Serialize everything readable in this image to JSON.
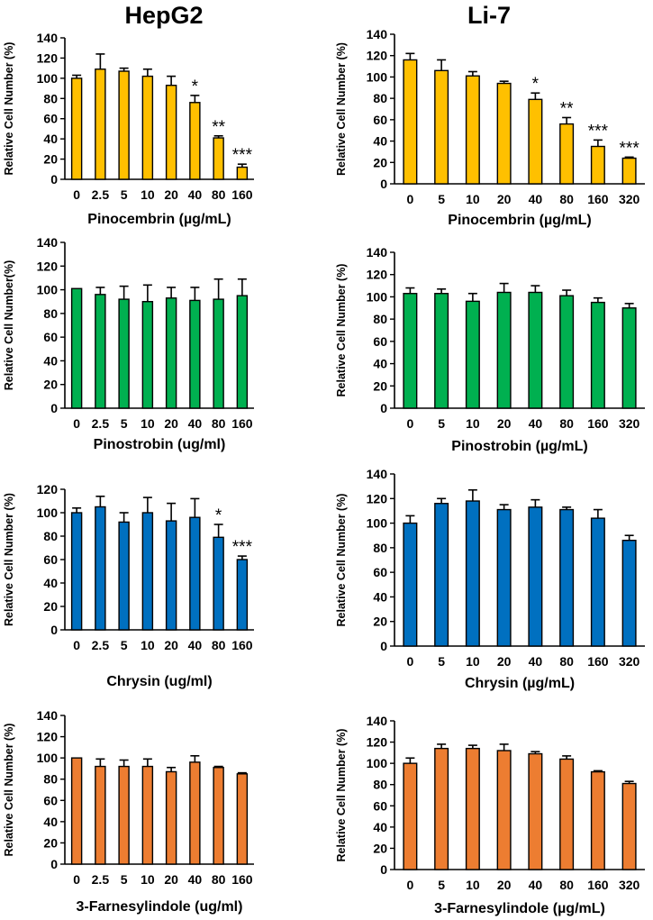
{
  "column_titles": [
    "HepG2",
    "Li-7"
  ],
  "chart_data": [
    {
      "type": "bar",
      "cell_line": "HepG2",
      "color": "#FFC000",
      "title": "",
      "xlabel": "Pinocembrin (µg/mL)",
      "ylabel": "Relative Cell Number (%)",
      "ylim": [
        0,
        140
      ],
      "yticks": [
        0,
        20,
        40,
        60,
        80,
        100,
        120,
        140
      ],
      "categories": [
        "0",
        "2.5",
        "5",
        "10",
        "20",
        "40",
        "80",
        "160"
      ],
      "values": [
        100,
        109,
        107,
        102,
        93,
        76,
        41,
        12
      ],
      "errors": [
        3,
        15,
        3,
        7,
        9,
        7,
        2,
        3
      ],
      "significance": [
        "",
        "",
        "",
        "",
        "",
        "*",
        "**",
        "***"
      ]
    },
    {
      "type": "bar",
      "cell_line": "Li-7",
      "color": "#FFC000",
      "title": "",
      "xlabel": "Pinocembrin (µg/mL)",
      "ylabel": "Relative Cell Number (%)",
      "ylim": [
        0,
        140
      ],
      "yticks": [
        0,
        20,
        40,
        60,
        80,
        100,
        120,
        140
      ],
      "categories": [
        "0",
        "5",
        "10",
        "20",
        "40",
        "80",
        "160",
        "320"
      ],
      "values": [
        116,
        106,
        101,
        94,
        79,
        56,
        35,
        24
      ],
      "errors": [
        6,
        10,
        4,
        2,
        6,
        6,
        6,
        1
      ],
      "significance": [
        "",
        "",
        "",
        "",
        "*",
        "**",
        "***",
        "***"
      ]
    },
    {
      "type": "bar",
      "cell_line": "HepG2",
      "color": "#00B050",
      "title": "",
      "xlabel": "Pinostrobin (ug/ml)",
      "ylabel": "Relative Cell Number(%)",
      "ylim": [
        0,
        140
      ],
      "yticks": [
        0,
        20,
        40,
        60,
        80,
        100,
        120,
        140
      ],
      "categories": [
        "0",
        "2.5",
        "5",
        "10",
        "20",
        "40",
        "80",
        "160"
      ],
      "values": [
        101,
        96,
        92,
        90,
        93,
        91,
        92,
        95
      ],
      "errors": [
        0,
        6,
        11,
        14,
        9,
        11,
        17,
        14
      ],
      "significance": [
        "",
        "",
        "",
        "",
        "",
        "",
        "",
        ""
      ]
    },
    {
      "type": "bar",
      "cell_line": "Li-7",
      "color": "#00B050",
      "title": "",
      "xlabel": "Pinostrobin (µg/mL)",
      "ylabel": "Relative Cell Number (%)",
      "ylim": [
        0,
        140
      ],
      "yticks": [
        0,
        20,
        40,
        60,
        80,
        100,
        120,
        140
      ],
      "categories": [
        "0",
        "5",
        "10",
        "20",
        "40",
        "80",
        "160",
        "320"
      ],
      "values": [
        103,
        103,
        96,
        104,
        104,
        101,
        95,
        90
      ],
      "errors": [
        5,
        4,
        7,
        8,
        6,
        5,
        4,
        4
      ],
      "significance": [
        "",
        "",
        "",
        "",
        "",
        "",
        "",
        ""
      ]
    },
    {
      "type": "bar",
      "cell_line": "HepG2",
      "color": "#0070C0",
      "title": "",
      "xlabel": "Chrysin (ug/ml)",
      "ylabel": "Relative Cell Number (%)",
      "ylim": [
        0,
        120
      ],
      "yticks": [
        0,
        20,
        40,
        60,
        80,
        100,
        120
      ],
      "categories": [
        "0",
        "2.5",
        "5",
        "10",
        "20",
        "40",
        "80",
        "160"
      ],
      "values": [
        100,
        105,
        92,
        100,
        93,
        96,
        79,
        60
      ],
      "errors": [
        4,
        9,
        8,
        13,
        15,
        16,
        11,
        3
      ],
      "significance": [
        "",
        "",
        "",
        "",
        "",
        "",
        "*",
        "***"
      ]
    },
    {
      "type": "bar",
      "cell_line": "Li-7",
      "color": "#0070C0",
      "title": "",
      "xlabel": "Chrysin (µg/mL)",
      "ylabel": "Relative Cell Number (%)",
      "ylim": [
        0,
        140
      ],
      "yticks": [
        0,
        20,
        40,
        60,
        80,
        100,
        120,
        140
      ],
      "categories": [
        "0",
        "5",
        "10",
        "20",
        "40",
        "80",
        "160",
        "320"
      ],
      "values": [
        100,
        116,
        118,
        111,
        113,
        111,
        104,
        86
      ],
      "errors": [
        6,
        4,
        9,
        4,
        6,
        2,
        7,
        4
      ],
      "significance": [
        "",
        "",
        "",
        "",
        "",
        "",
        "",
        ""
      ]
    },
    {
      "type": "bar",
      "cell_line": "HepG2",
      "color": "#ED7D31",
      "title": "",
      "xlabel": "3-Farnesylindole (ug/ml)",
      "ylabel": "Relative Cell Number (%)",
      "ylim": [
        0,
        140
      ],
      "yticks": [
        0,
        20,
        40,
        60,
        80,
        100,
        120,
        140
      ],
      "categories": [
        "0",
        "2.5",
        "5",
        "10",
        "20",
        "40",
        "80",
        "160"
      ],
      "values": [
        100,
        92,
        92,
        92,
        87,
        96,
        91,
        85
      ],
      "errors": [
        0,
        7,
        6,
        7,
        4,
        6,
        1,
        1
      ],
      "significance": [
        "",
        "",
        "",
        "",
        "",
        "",
        "",
        ""
      ]
    },
    {
      "type": "bar",
      "cell_line": "Li-7",
      "color": "#ED7D31",
      "title": "",
      "xlabel": "3-Farnesylindole (µg/mL)",
      "ylabel": "Relative Cell Number (%)",
      "ylim": [
        0,
        140
      ],
      "yticks": [
        0,
        20,
        40,
        60,
        80,
        100,
        120,
        140
      ],
      "categories": [
        "0",
        "5",
        "10",
        "20",
        "40",
        "80",
        "160",
        "320"
      ],
      "values": [
        100,
        114,
        114,
        112,
        109,
        104,
        92,
        81
      ],
      "errors": [
        5,
        4,
        3,
        6,
        2,
        3,
        1,
        2
      ],
      "significance": [
        "",
        "",
        "",
        "",
        "",
        "",
        "",
        ""
      ]
    }
  ]
}
